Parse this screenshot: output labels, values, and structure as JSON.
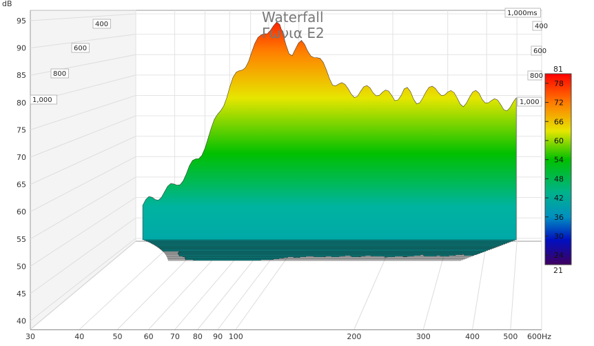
{
  "chart_data": {
    "type": "area",
    "title": "Waterfall",
    "subtitle": "Γωνια E2",
    "ylabel": "dB",
    "y_ticks": [
      "95",
      "90",
      "85",
      "80",
      "75",
      "70",
      "65",
      "60",
      "55",
      "50",
      "45",
      "40"
    ],
    "ylim": [
      40,
      96
    ],
    "x_ticks": [
      "30",
      "40",
      "50",
      "60",
      "70",
      "80",
      "90",
      "100",
      "200",
      "300",
      "400",
      "500",
      "600Hz"
    ],
    "x_tick_values": [
      30,
      40,
      50,
      60,
      70,
      80,
      90,
      100,
      200,
      300,
      400,
      500,
      600
    ],
    "xlim": [
      30,
      600
    ],
    "x_scale": "log",
    "time_ticks": [
      "400",
      "600",
      "800",
      "1,000"
    ],
    "time_ticks_right": [
      "1,000ms",
      "400",
      "600",
      "800",
      "1,000"
    ],
    "colorbar": {
      "min_label": "21",
      "max_label": "81",
      "ticks": [
        "78",
        "72",
        "66",
        "60",
        "54",
        "48",
        "42",
        "36",
        "30",
        "24"
      ],
      "tick_values": [
        78,
        72,
        66,
        60,
        54,
        48,
        42,
        36,
        30,
        24
      ],
      "range": [
        21,
        81
      ]
    },
    "colormap": [
      "#ff0000",
      "#ff8000",
      "#e6e600",
      "#00c000",
      "#00b3a0",
      "#0060c0",
      "#0000a0",
      "#400060"
    ],
    "grid": true,
    "slices": 30,
    "front_profile": {
      "freq": [
        36,
        40,
        45,
        50,
        55,
        60,
        65,
        70,
        75,
        80,
        85,
        90,
        95,
        100,
        105,
        110,
        120,
        130,
        140,
        150,
        165,
        180,
        200,
        220,
        240,
        260,
        280,
        300,
        330,
        360,
        400,
        450,
        500,
        550,
        600
      ],
      "db": [
        56,
        58,
        60,
        63,
        67,
        72,
        78,
        83,
        86,
        89,
        92,
        95,
        96,
        96,
        93,
        90,
        92,
        90,
        87,
        84,
        82,
        81,
        82,
        81,
        80,
        82,
        79,
        81,
        82,
        81,
        79,
        81,
        79,
        78,
        79
      ]
    }
  }
}
